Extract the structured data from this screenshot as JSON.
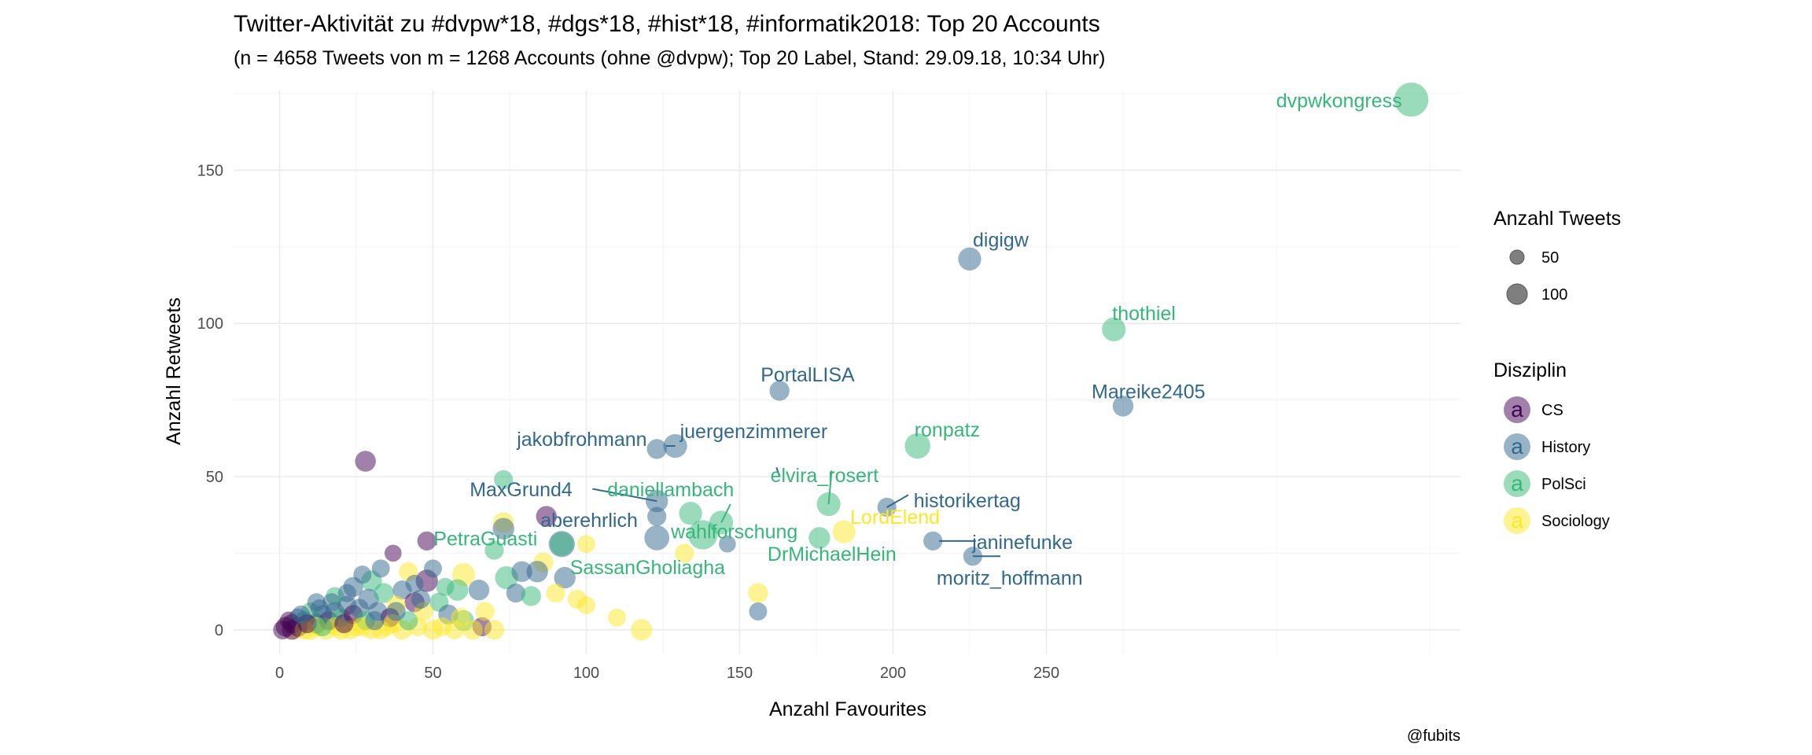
{
  "chart_data": {
    "type": "scatter",
    "title": "Twitter-Aktivität zu #dvpw*18, #dgs*18, #hist*18, #informatik2018: Top 20 Accounts",
    "subtitle": "(n = 4658 Tweets von m = 1268 Accounts (ohne @dvpw); Top 20 Label, Stand: 29.09.18, 10:34 Uhr)",
    "xlabel": "Anzahl Favourites",
    "ylabel": "Anzahl Retweets",
    "caption": "@fubits",
    "xlim": [
      -15,
      385
    ],
    "ylim": [
      -8,
      176
    ],
    "x_ticks": [
      0,
      50,
      100,
      150,
      200,
      250
    ],
    "y_ticks": [
      0,
      50,
      100,
      150
    ],
    "grid": true,
    "legend_position": "right",
    "size_legend": {
      "title": "Anzahl Tweets",
      "entries": [
        {
          "label": "50",
          "value": 50
        },
        {
          "label": "100",
          "value": 100
        }
      ]
    },
    "color_legend": {
      "title": "Disziplin",
      "glyph": "a",
      "entries": [
        {
          "label": "CS",
          "color": "#440154"
        },
        {
          "label": "History",
          "color": "#31688e"
        },
        {
          "label": "PolSci",
          "color": "#35b779"
        },
        {
          "label": "Sociology",
          "color": "#fde725"
        }
      ]
    },
    "labeled_points": [
      {
        "label": "dvpwkongress",
        "x": 369,
        "y": 173,
        "tweets": 165,
        "group": "PolSci"
      },
      {
        "label": "digigw",
        "x": 225,
        "y": 121,
        "tweets": 55,
        "group": "History"
      },
      {
        "label": "thothiel",
        "x": 272,
        "y": 98,
        "tweets": 60,
        "group": "PolSci"
      },
      {
        "label": "PortalLISA",
        "x": 163,
        "y": 78,
        "tweets": 35,
        "group": "History"
      },
      {
        "label": "Mareike2405",
        "x": 275,
        "y": 73,
        "tweets": 40,
        "group": "History"
      },
      {
        "label": "ronpatz",
        "x": 208,
        "y": 60,
        "tweets": 75,
        "group": "PolSci"
      },
      {
        "label": "jakobfrohmann",
        "x": 123,
        "y": 59,
        "tweets": 35,
        "group": "History"
      },
      {
        "label": "juergenzimmerer",
        "x": 129,
        "y": 60,
        "tweets": 60,
        "group": "History"
      },
      {
        "label": "daniellambach",
        "x": 134,
        "y": 38,
        "tweets": 55,
        "group": "PolSci"
      },
      {
        "label": "elvira_rosert",
        "x": 179,
        "y": 41,
        "tweets": 60,
        "group": "PolSci"
      },
      {
        "label": "MaxGrund4",
        "x": 123,
        "y": 42,
        "tweets": 50,
        "group": "History"
      },
      {
        "label": "wahlforschung",
        "x": 144,
        "y": 35,
        "tweets": 60,
        "group": "PolSci"
      },
      {
        "label": "historikertag",
        "x": 198,
        "y": 40,
        "tweets": 30,
        "group": "History"
      },
      {
        "label": "aberehrlich",
        "x": 123,
        "y": 30,
        "tweets": 70,
        "group": "History"
      },
      {
        "label": "LordElend",
        "x": 184,
        "y": 32,
        "tweets": 55,
        "group": "Sociology"
      },
      {
        "label": "janinefunke",
        "x": 213,
        "y": 29,
        "tweets": 30,
        "group": "History"
      },
      {
        "label": "PetraGuasti",
        "x": 92,
        "y": 28,
        "tweets": 60,
        "group": "PolSci"
      },
      {
        "label": "SassanGholiagha",
        "x": 138,
        "y": 31,
        "tweets": 110,
        "group": "PolSci"
      },
      {
        "label": "DrMichaelHein",
        "x": 176,
        "y": 30,
        "tweets": 45,
        "group": "PolSci"
      },
      {
        "label": "moritz_hoffmann",
        "x": 226,
        "y": 24,
        "tweets": 30,
        "group": "History"
      }
    ],
    "other_points": [
      {
        "x": 28,
        "y": 55,
        "tweets": 40,
        "group": "CS"
      },
      {
        "x": 73,
        "y": 49,
        "tweets": 30,
        "group": "PolSci"
      },
      {
        "x": 87,
        "y": 37,
        "tweets": 40,
        "group": "CS"
      },
      {
        "x": 73,
        "y": 35,
        "tweets": 40,
        "group": "Sociology"
      },
      {
        "x": 73,
        "y": 33,
        "tweets": 45,
        "group": "History"
      },
      {
        "x": 92,
        "y": 28,
        "tweets": 80,
        "group": "History"
      },
      {
        "x": 48,
        "y": 29,
        "tweets": 30,
        "group": "CS"
      },
      {
        "x": 37,
        "y": 25,
        "tweets": 20,
        "group": "CS"
      },
      {
        "x": 70,
        "y": 26,
        "tweets": 30,
        "group": "PolSci"
      },
      {
        "x": 100,
        "y": 28,
        "tweets": 25,
        "group": "Sociology"
      },
      {
        "x": 123,
        "y": 37,
        "tweets": 30,
        "group": "History"
      },
      {
        "x": 146,
        "y": 28,
        "tweets": 20,
        "group": "History"
      },
      {
        "x": 132,
        "y": 25,
        "tweets": 30,
        "group": "Sociology"
      },
      {
        "x": 86,
        "y": 22,
        "tweets": 35,
        "group": "Sociology"
      },
      {
        "x": 84,
        "y": 19,
        "tweets": 45,
        "group": "History"
      },
      {
        "x": 74,
        "y": 17,
        "tweets": 55,
        "group": "PolSci"
      },
      {
        "x": 60,
        "y": 18,
        "tweets": 55,
        "group": "Sociology"
      },
      {
        "x": 79,
        "y": 19,
        "tweets": 40,
        "group": "History"
      },
      {
        "x": 93,
        "y": 17,
        "tweets": 45,
        "group": "History"
      },
      {
        "x": 48,
        "y": 16,
        "tweets": 50,
        "group": "CS"
      },
      {
        "x": 42,
        "y": 19,
        "tweets": 30,
        "group": "Sociology"
      },
      {
        "x": 58,
        "y": 13,
        "tweets": 45,
        "group": "PolSci"
      },
      {
        "x": 65,
        "y": 13,
        "tweets": 40,
        "group": "History"
      },
      {
        "x": 77,
        "y": 12,
        "tweets": 30,
        "group": "History"
      },
      {
        "x": 82,
        "y": 11,
        "tweets": 35,
        "group": "PolSci"
      },
      {
        "x": 90,
        "y": 12,
        "tweets": 30,
        "group": "Sociology"
      },
      {
        "x": 97,
        "y": 10,
        "tweets": 30,
        "group": "Sociology"
      },
      {
        "x": 100,
        "y": 8,
        "tweets": 25,
        "group": "Sociology"
      },
      {
        "x": 156,
        "y": 12,
        "tweets": 35,
        "group": "Sociology"
      },
      {
        "x": 156,
        "y": 6,
        "tweets": 25,
        "group": "History"
      },
      {
        "x": 110,
        "y": 4,
        "tweets": 25,
        "group": "Sociology"
      },
      {
        "x": 118,
        "y": 0,
        "tweets": 45,
        "group": "Sociology"
      },
      {
        "x": 30,
        "y": 16,
        "tweets": 40,
        "group": "PolSci"
      },
      {
        "x": 24,
        "y": 14,
        "tweets": 35,
        "group": "History"
      },
      {
        "x": 29,
        "y": 10,
        "tweets": 40,
        "group": "History"
      },
      {
        "x": 34,
        "y": 12,
        "tweets": 35,
        "group": "PolSci"
      },
      {
        "x": 40,
        "y": 13,
        "tweets": 30,
        "group": "History"
      },
      {
        "x": 44,
        "y": 9,
        "tweets": 35,
        "group": "CS"
      },
      {
        "x": 38,
        "y": 8,
        "tweets": 30,
        "group": "Sociology"
      },
      {
        "x": 52,
        "y": 9,
        "tweets": 30,
        "group": "PolSci"
      },
      {
        "x": 55,
        "y": 5,
        "tweets": 35,
        "group": "History"
      },
      {
        "x": 60,
        "y": 3,
        "tweets": 40,
        "group": "PolSci"
      },
      {
        "x": 66,
        "y": 1,
        "tweets": 30,
        "group": "CS"
      },
      {
        "x": 70,
        "y": 0,
        "tweets": 35,
        "group": "Sociology"
      },
      {
        "x": 63,
        "y": 0,
        "tweets": 35,
        "group": "Sociology"
      },
      {
        "x": 57,
        "y": 0,
        "tweets": 30,
        "group": "Sociology"
      },
      {
        "x": 50,
        "y": 0,
        "tweets": 35,
        "group": "Sociology"
      },
      {
        "x": 45,
        "y": 1,
        "tweets": 30,
        "group": "Sociology"
      },
      {
        "x": 40,
        "y": 0,
        "tweets": 35,
        "group": "Sociology"
      },
      {
        "x": 35,
        "y": 1,
        "tweets": 30,
        "group": "Sociology"
      },
      {
        "x": 30,
        "y": 0,
        "tweets": 30,
        "group": "Sociology"
      },
      {
        "x": 25,
        "y": 1,
        "tweets": 30,
        "group": "Sociology"
      },
      {
        "x": 20,
        "y": 0,
        "tweets": 35,
        "group": "Sociology"
      },
      {
        "x": 15,
        "y": 0,
        "tweets": 35,
        "group": "Sociology"
      },
      {
        "x": 10,
        "y": 0,
        "tweets": 40,
        "group": "Sociology"
      },
      {
        "x": 5,
        "y": 0,
        "tweets": 30,
        "group": "Sociology"
      },
      {
        "x": 2,
        "y": 1,
        "tweets": 35,
        "group": "CS"
      },
      {
        "x": 4,
        "y": 2,
        "tweets": 30,
        "group": "CS"
      },
      {
        "x": 6,
        "y": 1,
        "tweets": 35,
        "group": "CS"
      },
      {
        "x": 8,
        "y": 3,
        "tweets": 30,
        "group": "History"
      },
      {
        "x": 12,
        "y": 2,
        "tweets": 35,
        "group": "History"
      },
      {
        "x": 14,
        "y": 5,
        "tweets": 30,
        "group": "History"
      },
      {
        "x": 16,
        "y": 3,
        "tweets": 30,
        "group": "CS"
      },
      {
        "x": 18,
        "y": 6,
        "tweets": 30,
        "group": "History"
      },
      {
        "x": 20,
        "y": 4,
        "tweets": 30,
        "group": "PolSci"
      },
      {
        "x": 22,
        "y": 8,
        "tweets": 30,
        "group": "History"
      },
      {
        "x": 24,
        "y": 5,
        "tweets": 30,
        "group": "CS"
      },
      {
        "x": 26,
        "y": 7,
        "tweets": 30,
        "group": "History"
      },
      {
        "x": 28,
        "y": 3,
        "tweets": 30,
        "group": "PolSci"
      },
      {
        "x": 32,
        "y": 6,
        "tweets": 30,
        "group": "History"
      },
      {
        "x": 36,
        "y": 4,
        "tweets": 30,
        "group": "CS"
      },
      {
        "x": 10,
        "y": 6,
        "tweets": 25,
        "group": "PolSci"
      },
      {
        "x": 6,
        "y": 4,
        "tweets": 25,
        "group": "History"
      },
      {
        "x": 3,
        "y": 3,
        "tweets": 25,
        "group": "CS"
      },
      {
        "x": 1,
        "y": 0,
        "tweets": 30,
        "group": "CS"
      },
      {
        "x": 12,
        "y": 9,
        "tweets": 25,
        "group": "History"
      },
      {
        "x": 18,
        "y": 11,
        "tweets": 25,
        "group": "PolSci"
      },
      {
        "x": 27,
        "y": 18,
        "tweets": 25,
        "group": "History"
      },
      {
        "x": 33,
        "y": 20,
        "tweets": 25,
        "group": "History"
      },
      {
        "x": 44,
        "y": 15,
        "tweets": 25,
        "group": "History"
      },
      {
        "x": 50,
        "y": 20,
        "tweets": 25,
        "group": "History"
      },
      {
        "x": 54,
        "y": 14,
        "tweets": 25,
        "group": "PolSci"
      },
      {
        "x": 8,
        "y": 0,
        "tweets": 30,
        "group": "Sociology"
      },
      {
        "x": 12,
        "y": 1,
        "tweets": 30,
        "group": "Sociology"
      },
      {
        "x": 18,
        "y": 1,
        "tweets": 30,
        "group": "Sociology"
      },
      {
        "x": 23,
        "y": 0,
        "tweets": 30,
        "group": "Sociology"
      },
      {
        "x": 27,
        "y": 1,
        "tweets": 30,
        "group": "Sociology"
      },
      {
        "x": 33,
        "y": 0,
        "tweets": 30,
        "group": "Sociology"
      },
      {
        "x": 37,
        "y": 2,
        "tweets": 30,
        "group": "Sociology"
      },
      {
        "x": 42,
        "y": 3,
        "tweets": 30,
        "group": "PolSci"
      },
      {
        "x": 47,
        "y": 6,
        "tweets": 30,
        "group": "Sociology"
      },
      {
        "x": 53,
        "y": 1,
        "tweets": 30,
        "group": "Sociology"
      },
      {
        "x": 59,
        "y": 4,
        "tweets": 30,
        "group": "Sociology"
      },
      {
        "x": 67,
        "y": 6,
        "tweets": 30,
        "group": "Sociology"
      },
      {
        "x": 4,
        "y": 0,
        "tweets": 35,
        "group": "CS"
      },
      {
        "x": 9,
        "y": 2,
        "tweets": 30,
        "group": "CS"
      },
      {
        "x": 14,
        "y": 1,
        "tweets": 30,
        "group": "PolSci"
      },
      {
        "x": 21,
        "y": 2,
        "tweets": 30,
        "group": "CS"
      },
      {
        "x": 31,
        "y": 3,
        "tweets": 30,
        "group": "History"
      },
      {
        "x": 38,
        "y": 6,
        "tweets": 30,
        "group": "History"
      },
      {
        "x": 46,
        "y": 10,
        "tweets": 30,
        "group": "History"
      },
      {
        "x": 13,
        "y": 7,
        "tweets": 25,
        "group": "History"
      },
      {
        "x": 17,
        "y": 9,
        "tweets": 25,
        "group": "History"
      },
      {
        "x": 22,
        "y": 12,
        "tweets": 25,
        "group": "History"
      },
      {
        "x": 7,
        "y": 5,
        "tweets": 25,
        "group": "History"
      }
    ],
    "label_lines": [
      {
        "from": [
          126,
          60
        ],
        "to": [
          129,
          60
        ],
        "group": "History"
      },
      {
        "from": [
          162,
          53
        ],
        "to": [
          163,
          50
        ],
        "group": "History"
      },
      {
        "from": [
          102,
          46
        ],
        "to": [
          123,
          42
        ],
        "group": "History"
      },
      {
        "from": [
          180,
          52
        ],
        "to": [
          179,
          41
        ],
        "group": "PolSci"
      },
      {
        "from": [
          147,
          41
        ],
        "to": [
          144,
          35
        ],
        "group": "PolSci"
      },
      {
        "from": [
          205,
          44
        ],
        "to": [
          198,
          40
        ],
        "group": "History"
      },
      {
        "from": [
          215,
          29
        ],
        "to": [
          227,
          29
        ],
        "group": "History"
      },
      {
        "from": [
          235,
          24
        ],
        "to": [
          226,
          24
        ],
        "group": "History"
      }
    ]
  }
}
